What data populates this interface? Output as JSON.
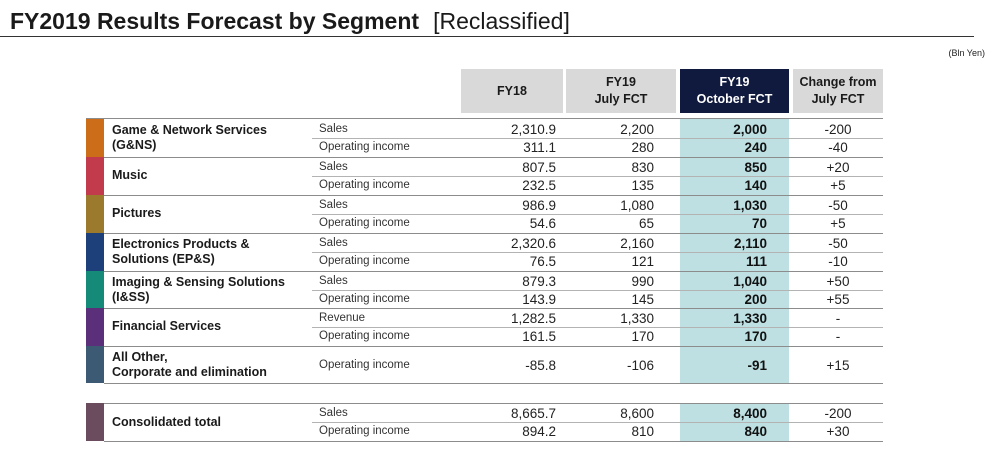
{
  "title": {
    "main": "FY2019 Results Forecast by Segment",
    "sub": "[Reclassified]"
  },
  "unit": "(Bln Yen)",
  "headers": {
    "fy18": "FY18",
    "july_l1": "FY19",
    "july_l2": "July FCT",
    "oct_l1": "FY19",
    "oct_l2": "October FCT",
    "chg_l1": "Change from",
    "chg_l2": "July FCT"
  },
  "colors": {
    "gns": "#cc6d1a",
    "music": "#c23b4c",
    "pictures": "#9b7a2e",
    "epns": "#1d3f7a",
    "iss": "#158a78",
    "fs": "#5b2f7a",
    "other": "#3d5a75",
    "total": "#6a4c5e",
    "highlight": "#bfe0e3",
    "header_dark": "#101a3f"
  },
  "segments": [
    {
      "name_l1": "Game & Network Services",
      "name_l2": "(G&NS)",
      "rows": [
        {
          "label": "Sales",
          "fy18": "2,310.9",
          "july": "2,200",
          "oct": "2,000",
          "chg": "-200"
        },
        {
          "label": "Operating income",
          "fy18": "311.1",
          "july": "280",
          "oct": "240",
          "chg": "-40"
        }
      ]
    },
    {
      "name_l1": "Music",
      "name_l2": "",
      "rows": [
        {
          "label": "Sales",
          "fy18": "807.5",
          "july": "830",
          "oct": "850",
          "chg": "+20"
        },
        {
          "label": "Operating income",
          "fy18": "232.5",
          "july": "135",
          "oct": "140",
          "chg": "+5"
        }
      ]
    },
    {
      "name_l1": "Pictures",
      "name_l2": "",
      "rows": [
        {
          "label": "Sales",
          "fy18": "986.9",
          "july": "1,080",
          "oct": "1,030",
          "chg": "-50"
        },
        {
          "label": "Operating income",
          "fy18": "54.6",
          "july": "65",
          "oct": "70",
          "chg": "+5"
        }
      ]
    },
    {
      "name_l1": "Electronics Products &",
      "name_l2": "Solutions (EP&S)",
      "rows": [
        {
          "label": "Sales",
          "fy18": "2,320.6",
          "july": "2,160",
          "oct": "2,110",
          "chg": "-50"
        },
        {
          "label": "Operating income",
          "fy18": "76.5",
          "july": "121",
          "oct": "111",
          "chg": "-10"
        }
      ]
    },
    {
      "name_l1": "Imaging & Sensing Solutions",
      "name_l2": "(I&SS)",
      "rows": [
        {
          "label": "Sales",
          "fy18": "879.3",
          "july": "990",
          "oct": "1,040",
          "chg": "+50"
        },
        {
          "label": "Operating income",
          "fy18": "143.9",
          "july": "145",
          "oct": "200",
          "chg": "+55"
        }
      ]
    },
    {
      "name_l1": "Financial Services",
      "name_l2": "",
      "rows": [
        {
          "label": "Revenue",
          "fy18": "1,282.5",
          "july": "1,330",
          "oct": "1,330",
          "chg": "-"
        },
        {
          "label": "Operating income",
          "fy18": "161.5",
          "july": "170",
          "oct": "170",
          "chg": "-"
        }
      ]
    },
    {
      "name_l1": "All Other,",
      "name_l2": "Corporate and elimination",
      "rows": [
        {
          "label": "Operating income",
          "fy18": "-85.8",
          "july": "-106",
          "oct": "-91",
          "chg": "+15"
        }
      ]
    }
  ],
  "total": {
    "name": "Consolidated total",
    "rows": [
      {
        "label": "Sales",
        "fy18": "8,665.7",
        "july": "8,600",
        "oct": "8,400",
        "chg": "-200"
      },
      {
        "label": "Operating income",
        "fy18": "894.2",
        "july": "810",
        "oct": "840",
        "chg": "+30"
      }
    ]
  }
}
